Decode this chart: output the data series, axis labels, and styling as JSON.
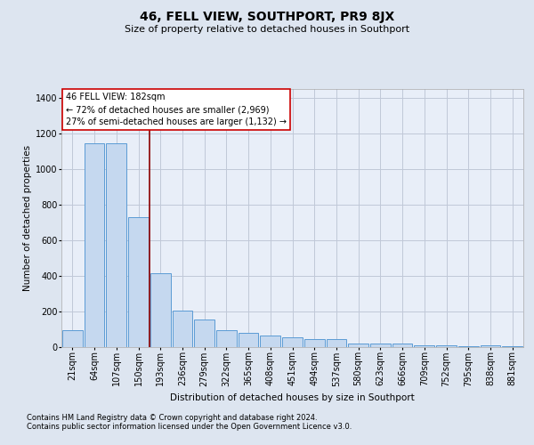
{
  "title": "46, FELL VIEW, SOUTHPORT, PR9 8JX",
  "subtitle": "Size of property relative to detached houses in Southport",
  "xlabel": "Distribution of detached houses by size in Southport",
  "ylabel": "Number of detached properties",
  "bar_labels": [
    "21sqm",
    "64sqm",
    "107sqm",
    "150sqm",
    "193sqm",
    "236sqm",
    "279sqm",
    "322sqm",
    "365sqm",
    "408sqm",
    "451sqm",
    "494sqm",
    "537sqm",
    "580sqm",
    "623sqm",
    "666sqm",
    "709sqm",
    "752sqm",
    "795sqm",
    "838sqm",
    "881sqm"
  ],
  "bar_values": [
    95,
    1145,
    1145,
    730,
    415,
    205,
    155,
    95,
    80,
    65,
    55,
    45,
    45,
    22,
    22,
    22,
    12,
    12,
    5,
    12,
    5
  ],
  "bar_color": "#c5d8ef",
  "bar_edgecolor": "#5b9bd5",
  "property_line_bin": 4,
  "property_line_color": "#8b0000",
  "ylim_max": 1450,
  "yticks": [
    0,
    200,
    400,
    600,
    800,
    1000,
    1200,
    1400
  ],
  "annotation_line1": "46 FELL VIEW: 182sqm",
  "annotation_line2": "← 72% of detached houses are smaller (2,969)",
  "annotation_line3": "27% of semi-detached houses are larger (1,132) →",
  "annotation_box_facecolor": "#ffffff",
  "annotation_box_edgecolor": "#cc0000",
  "footnote1": "Contains HM Land Registry data © Crown copyright and database right 2024.",
  "footnote2": "Contains public sector information licensed under the Open Government Licence v3.0.",
  "bg_color": "#dde5f0",
  "plot_bg_color": "#e8eef8",
  "grid_color": "#c0c8d8",
  "title_fontsize": 10,
  "subtitle_fontsize": 8,
  "axis_label_fontsize": 7.5,
  "tick_fontsize": 7,
  "annotation_fontsize": 7,
  "footnote_fontsize": 6
}
